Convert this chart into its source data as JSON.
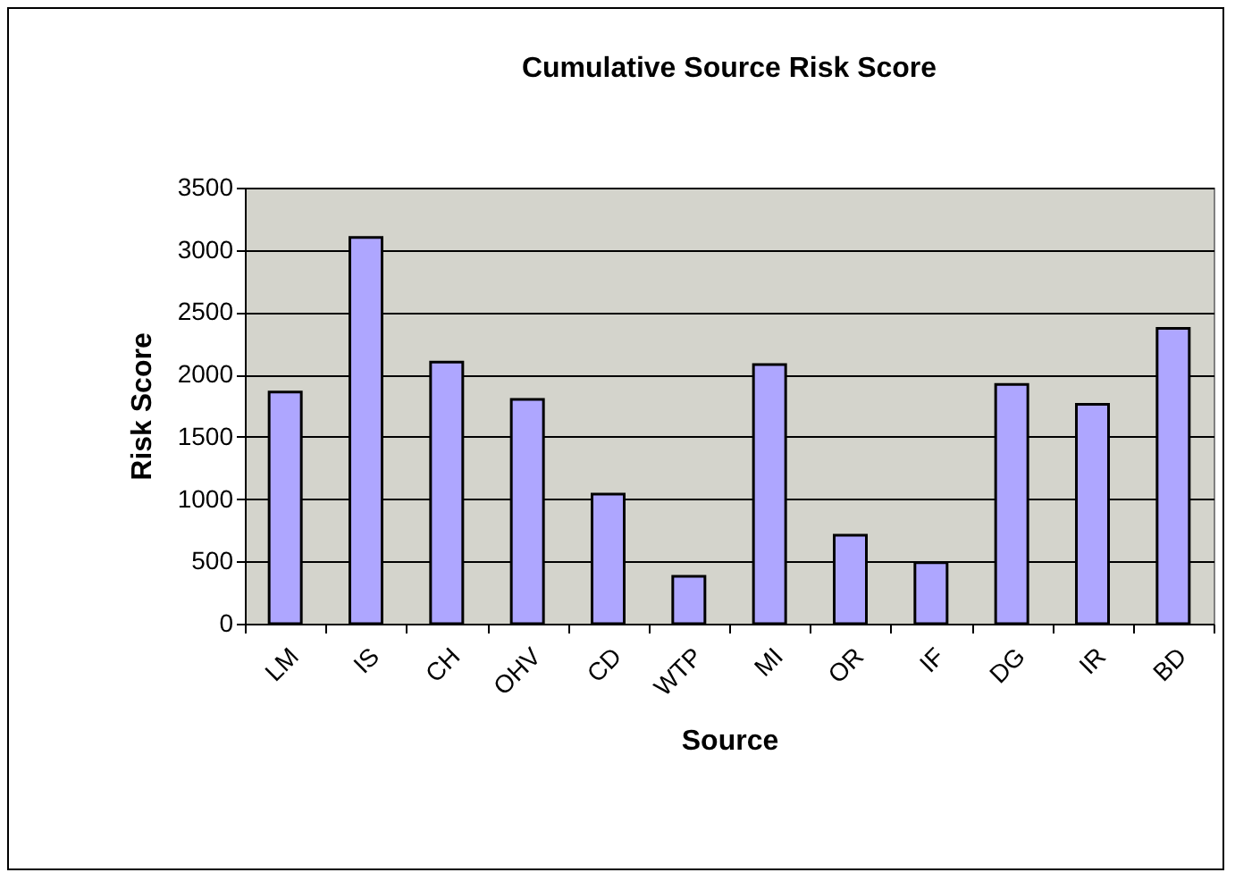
{
  "chart_data": {
    "type": "bar",
    "title": "Cumulative Source Risk Score",
    "xlabel": "Source",
    "ylabel": "Risk Score",
    "categories": [
      "LM",
      "IS",
      "CH",
      "OHV",
      "CD",
      "WTP",
      "MI",
      "OR",
      "IF",
      "DG",
      "IR",
      "BD"
    ],
    "values": [
      1860,
      3100,
      2100,
      1800,
      1040,
      380,
      2080,
      710,
      490,
      1920,
      1760,
      2370
    ],
    "color": "#aea6ff",
    "ylim": [
      0,
      3500
    ],
    "yticks": [
      0,
      500,
      1000,
      1500,
      2000,
      2500,
      3000,
      3500
    ],
    "grid": "y"
  }
}
